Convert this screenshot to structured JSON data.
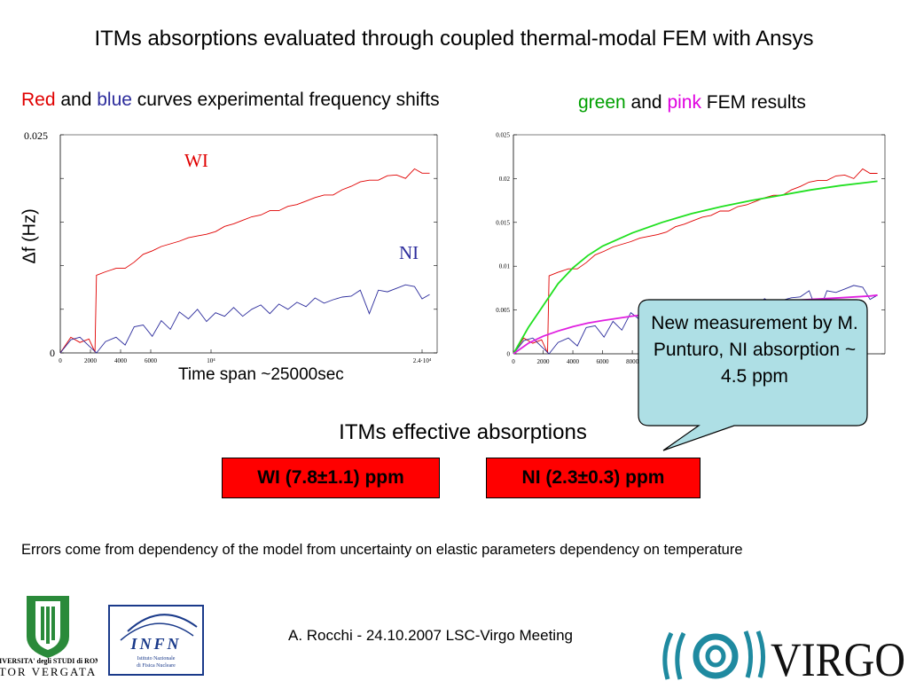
{
  "slide": {
    "title": "ITMs absorptions evaluated through coupled thermal-modal FEM with Ansys",
    "subtitle_left": {
      "w1": "Red",
      "w2": " and ",
      "w3": "blue",
      "w4": " curves experimental frequency shifts"
    },
    "subtitle_right": {
      "w1": "green",
      "w2": " and ",
      "w3": "pink",
      "w4": " FEM results"
    },
    "callout": "New measurement by M. Punturo, NI absorption ~ 4.5 ppm",
    "effective_title": "ITMs effective absorptions",
    "wi_result": "WI (7.8±1.1) ppm",
    "ni_result": "NI (2.3±0.3) ppm",
    "errors_note": "Errors come from dependency of the model from uncertainty on elastic parameters dependency on temperature",
    "footer": "A. Rocchi - 24.10.2007 LSC-Virgo Meeting",
    "logos": [
      "Università degli Studi di Roma Tor Vergata",
      "INFN Istituto Nazionale di Fisica Nucleare",
      "VIRGO"
    ],
    "logo_text": {
      "tor_line1": "UNIVERSITA' degli STUDI di ROMA",
      "tor_line2": "TOR VERGATA",
      "infn": "INFN",
      "infn_sub1": "Istituto Nazionale",
      "infn_sub2": "di Fisica Nucleare",
      "virgo": "VIRGO"
    }
  },
  "colors": {
    "red": "#e00000",
    "blue": "#2c2c9c",
    "green": "#20e020",
    "pink": "#e020e0",
    "box": "#ff0000",
    "callout": "#aedfe5"
  },
  "chart_data": [
    {
      "type": "line",
      "ylabel": "Δf (Hz)",
      "xlabel": "Time span ~25000sec",
      "ylim": [
        0,
        0.025
      ],
      "xlim": [
        0,
        25000
      ],
      "ytick_labels": [
        "0",
        "0.025"
      ],
      "xtick_labels": [
        "0",
        "2000",
        "4000",
        "6000",
        "10⁴",
        "2.4·10⁴"
      ],
      "xticks": [
        0,
        2000,
        4000,
        6000,
        10000,
        24000
      ],
      "grid": false,
      "annotations": [
        "WI",
        "NI"
      ],
      "series": [
        {
          "name": "WI",
          "color": "red",
          "x": [
            0,
            700,
            1300,
            1900,
            2300,
            2400,
            3000,
            3700,
            4300,
            4900,
            5500,
            6100,
            6700,
            7300,
            7900,
            8500,
            9100,
            9700,
            10300,
            10900,
            11500,
            12100,
            12700,
            13300,
            13900,
            14500,
            15100,
            15700,
            16300,
            16900,
            17500,
            18100,
            18700,
            19300,
            19900,
            20500,
            21100,
            21700,
            22300,
            22900,
            23500,
            24000,
            24500
          ],
          "y": [
            0,
            0.0018,
            0.0012,
            0.0016,
            0.0001,
            0.0089,
            0.0093,
            0.0097,
            0.0097,
            0.0104,
            0.0113,
            0.0117,
            0.0122,
            0.0125,
            0.0128,
            0.0132,
            0.0134,
            0.0136,
            0.0139,
            0.0145,
            0.0148,
            0.0152,
            0.0156,
            0.0158,
            0.0163,
            0.0163,
            0.0168,
            0.017,
            0.0174,
            0.0178,
            0.0181,
            0.0181,
            0.0187,
            0.0191,
            0.0196,
            0.0198,
            0.0198,
            0.0203,
            0.0204,
            0.02,
            0.0211,
            0.0206,
            0.0206
          ]
        },
        {
          "name": "NI",
          "color": "blue",
          "x": [
            0,
            700,
            1300,
            1900,
            2400,
            3000,
            3700,
            4300,
            4900,
            5500,
            6100,
            6700,
            7300,
            7900,
            8500,
            9100,
            9700,
            10300,
            10900,
            11500,
            12100,
            12700,
            13300,
            13900,
            14500,
            15100,
            15700,
            16300,
            16900,
            17500,
            18100,
            18700,
            19300,
            19900,
            20500,
            21100,
            21700,
            22300,
            22900,
            23500,
            24000,
            24500
          ],
          "y": [
            0,
            0.0015,
            0.0018,
            0.0008,
            0.0,
            0.0013,
            0.0018,
            0.0009,
            0.003,
            0.0032,
            0.0019,
            0.0037,
            0.0027,
            0.0047,
            0.0039,
            0.005,
            0.0036,
            0.0046,
            0.0042,
            0.0052,
            0.0042,
            0.005,
            0.0055,
            0.0045,
            0.0056,
            0.005,
            0.0058,
            0.0053,
            0.0063,
            0.0057,
            0.0061,
            0.0064,
            0.0065,
            0.0072,
            0.0045,
            0.0072,
            0.007,
            0.0074,
            0.0078,
            0.0076,
            0.0062,
            0.0067
          ]
        }
      ]
    },
    {
      "type": "line",
      "ylim": [
        0,
        0.025
      ],
      "xlim": [
        0,
        25000
      ],
      "ytick_labels": [
        "0",
        "0.005",
        "0.01",
        "0.015",
        "0.02",
        "0.025"
      ],
      "yticks": [
        0,
        0.005,
        0.01,
        0.015,
        0.02,
        0.025
      ],
      "xtick_labels": [
        "0",
        "2000",
        "4000",
        "6000",
        "8000"
      ],
      "xticks": [
        0,
        2000,
        4000,
        6000,
        8000
      ],
      "grid": false,
      "series": [
        {
          "color": "red",
          "x": [
            0,
            700,
            1300,
            1900,
            2300,
            2400,
            3000,
            3700,
            4300,
            4900,
            5500,
            6100,
            6700,
            7300,
            7900,
            8500,
            9100,
            9700,
            10300,
            10900,
            11500,
            12100,
            12700,
            13300,
            13900,
            14500,
            15100,
            15700,
            16300,
            16900,
            17500,
            18100,
            18700,
            19300,
            19900,
            20500,
            21100,
            21700,
            22300,
            22900,
            23500,
            24000,
            24500
          ],
          "y": [
            0,
            0.0018,
            0.0012,
            0.0016,
            0.0001,
            0.0089,
            0.0093,
            0.0097,
            0.0097,
            0.0104,
            0.0113,
            0.0117,
            0.0122,
            0.0125,
            0.0128,
            0.0132,
            0.0134,
            0.0136,
            0.0139,
            0.0145,
            0.0148,
            0.0152,
            0.0156,
            0.0158,
            0.0163,
            0.0163,
            0.0168,
            0.017,
            0.0174,
            0.0178,
            0.0181,
            0.0181,
            0.0187,
            0.0191,
            0.0196,
            0.0198,
            0.0198,
            0.0203,
            0.0204,
            0.02,
            0.0211,
            0.0206,
            0.0206
          ]
        },
        {
          "color": "blue",
          "x": [
            0,
            700,
            1300,
            1900,
            2400,
            3000,
            3700,
            4300,
            4900,
            5500,
            6100,
            6700,
            7300,
            7900,
            8500,
            9100,
            9700,
            10300,
            10900,
            11500,
            12100,
            12700,
            13300,
            13900,
            14500,
            15100,
            15700,
            16300,
            16900,
            17500,
            18100,
            18700,
            19300,
            19900,
            20500,
            21100,
            21700,
            22300,
            22900,
            23500,
            24000,
            24500
          ],
          "y": [
            0,
            0.0015,
            0.0018,
            0.0008,
            0.0,
            0.0013,
            0.0018,
            0.0009,
            0.003,
            0.0032,
            0.0019,
            0.0037,
            0.0027,
            0.0047,
            0.0039,
            0.005,
            0.0036,
            0.0046,
            0.0042,
            0.0052,
            0.0042,
            0.005,
            0.0055,
            0.0045,
            0.0056,
            0.005,
            0.0058,
            0.0053,
            0.0063,
            0.0057,
            0.0061,
            0.0064,
            0.0065,
            0.0072,
            0.0045,
            0.0072,
            0.007,
            0.0074,
            0.0078,
            0.0076,
            0.0062,
            0.0067
          ]
        },
        {
          "color": "green",
          "x": [
            0,
            1000,
            2000,
            3000,
            4000,
            5000,
            6000,
            8000,
            10000,
            12000,
            14000,
            16000,
            18000,
            20000,
            22000,
            24000,
            24500
          ],
          "y": [
            0,
            0.003,
            0.0055,
            0.008,
            0.0098,
            0.0112,
            0.0123,
            0.0138,
            0.015,
            0.016,
            0.0168,
            0.0175,
            0.0181,
            0.0187,
            0.0192,
            0.0196,
            0.0197
          ]
        },
        {
          "color": "pink",
          "x": [
            0,
            1000,
            2000,
            3000,
            4000,
            5000,
            6000,
            8000,
            10000,
            12000,
            14000,
            16000,
            18000,
            20000,
            22000,
            24000,
            24500
          ],
          "y": [
            0,
            0.0012,
            0.002,
            0.0026,
            0.0031,
            0.0035,
            0.0038,
            0.0043,
            0.0047,
            0.0051,
            0.0054,
            0.0057,
            0.006,
            0.0062,
            0.0064,
            0.0066,
            0.0067
          ]
        }
      ]
    }
  ]
}
